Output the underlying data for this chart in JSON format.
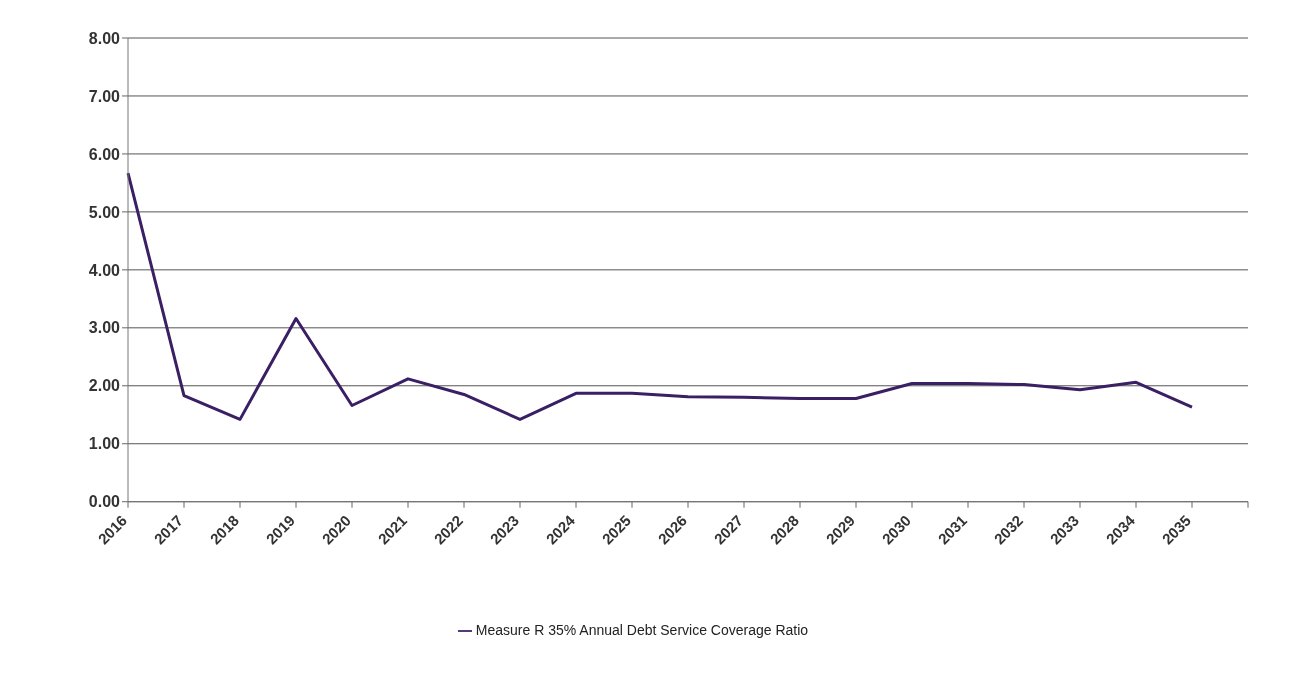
{
  "chart_data": {
    "type": "line",
    "categories": [
      "2016",
      "2017",
      "2018",
      "2019",
      "2020",
      "2021",
      "2022",
      "2023",
      "2024",
      "2025",
      "2026",
      "2027",
      "2028",
      "2029",
      "2030",
      "2031",
      "2032",
      "2033",
      "2034",
      "2035",
      null
    ],
    "series": [
      {
        "name": "Measure R 35% Annual Debt Service Coverage Ratio",
        "color": "#3a1f64",
        "values": [
          5.67,
          1.83,
          1.42,
          3.16,
          1.66,
          2.12,
          1.85,
          1.42,
          1.87,
          1.87,
          1.81,
          1.8,
          1.78,
          1.78,
          2.04,
          2.04,
          2.02,
          1.93,
          2.06,
          1.63,
          null
        ]
      }
    ],
    "ylim": [
      0,
      8
    ],
    "yticks": [
      {
        "value": 0,
        "label": "0.00"
      },
      {
        "value": 1,
        "label": "1.00"
      },
      {
        "value": 2,
        "label": "2.00"
      },
      {
        "value": 3,
        "label": "3.00"
      },
      {
        "value": 4,
        "label": "4.00"
      },
      {
        "value": 5,
        "label": "5.00"
      },
      {
        "value": 6,
        "label": "6.00"
      },
      {
        "value": 7,
        "label": "7.00"
      },
      {
        "value": 8,
        "label": "8.00"
      }
    ],
    "grid": "y",
    "legend": "bottom",
    "marker": "none",
    "line_style": "solid"
  }
}
